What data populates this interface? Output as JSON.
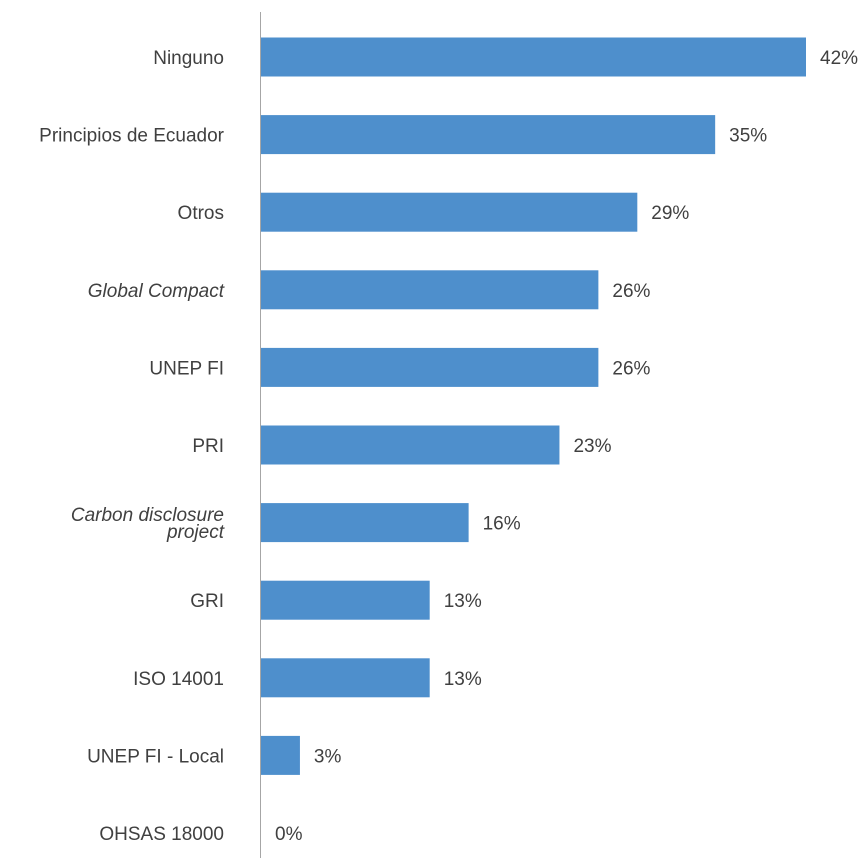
{
  "chart_data": {
    "type": "bar",
    "orientation": "horizontal",
    "categories": [
      "Ninguno",
      "Principios de Ecuador",
      "Otros",
      "Global Compact",
      "UNEP FI",
      "PRI",
      "Carbon disclosure project",
      "GRI",
      "ISO 14001",
      "UNEP FI - Local",
      "OHSAS 18000"
    ],
    "category_lines": [
      [
        "Ninguno"
      ],
      [
        "Principios de Ecuador"
      ],
      [
        "Otros"
      ],
      [
        "Global Compact"
      ],
      [
        "UNEP FI"
      ],
      [
        "PRI"
      ],
      [
        "Carbon disclosure",
        "project"
      ],
      [
        "GRI"
      ],
      [
        "ISO 14001"
      ],
      [
        "UNEP FI - Local"
      ],
      [
        "OHSAS 18000"
      ]
    ],
    "italic_categories": [
      "Global Compact",
      "Carbon disclosure project"
    ],
    "values": [
      42,
      35,
      29,
      26,
      26,
      23,
      16,
      13,
      13,
      3,
      0
    ],
    "value_labels": [
      "42%",
      "35%",
      "29%",
      "26%",
      "26%",
      "23%",
      "16%",
      "13%",
      "13%",
      "3%",
      "0%"
    ],
    "xlim": [
      0,
      42
    ],
    "title": "",
    "xlabel": "",
    "ylabel": "",
    "grid": false,
    "legend": "none",
    "bar_color": "#4e8fcc",
    "axis_color": "#a6a6a6",
    "text_color": "#404040"
  }
}
